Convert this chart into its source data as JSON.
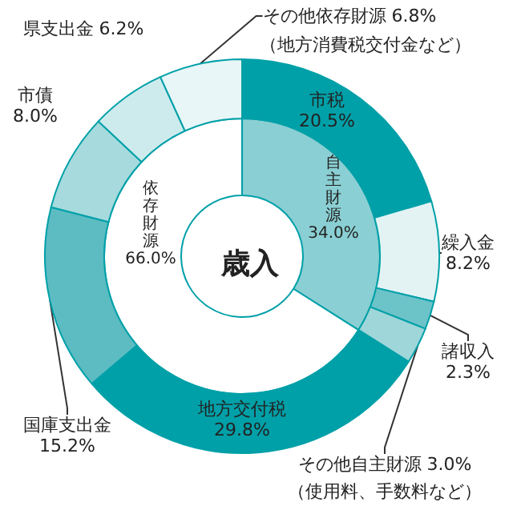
{
  "chart_data": [
    {
      "type": "donut",
      "title": "歳入",
      "categories": [
        "自主財源",
        "依存財源"
      ],
      "values": [
        34.0,
        66.0
      ],
      "colors": [
        "#8acfd3",
        "#ffffff"
      ],
      "value_labels": [
        "34.0%",
        "66.0%"
      ]
    },
    {
      "type": "donut",
      "annotations": [
        "（地方消費税交付金など）",
        "（使用料、手数料など）"
      ],
      "categories": [
        "市税",
        "繰入金",
        "諸収入",
        "その他自主財源",
        "地方交付税",
        "国庫支出金",
        "市債",
        "県支出金",
        "その他依存財源"
      ],
      "values": [
        20.5,
        8.2,
        2.3,
        3.0,
        29.8,
        15.2,
        8.0,
        6.2,
        6.8
      ],
      "colors": [
        "#00a0a8",
        "#e3f3f4",
        "#6cc3c8",
        "#9fd6d9",
        "#00a0a8",
        "#5cbcc2",
        "#a6dadd",
        "#cdebed",
        "#e8f6f7"
      ],
      "value_labels": [
        "20.5%",
        "8.2%",
        "2.3%",
        "3.0%",
        "29.8%",
        "15.2%",
        "8.0%",
        "6.2%",
        "6.8%"
      ]
    }
  ]
}
